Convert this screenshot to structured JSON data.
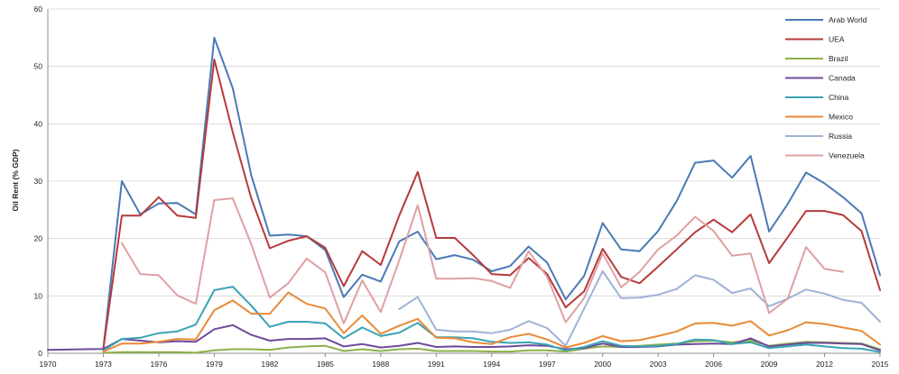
{
  "chart_data": {
    "type": "line",
    "title": "",
    "xlabel": "",
    "ylabel": "Oil Rent (% GDP)",
    "xlim": [
      1970,
      2015
    ],
    "ylim": [
      0,
      60
    ],
    "x_ticks": [
      "1970",
      "1973",
      "1976",
      "1979",
      "1982",
      "1985",
      "1988",
      "1991",
      "1994",
      "1997",
      "2000",
      "2003",
      "2006",
      "2009",
      "2012",
      "2015"
    ],
    "y_ticks": [
      "0",
      "10",
      "20",
      "30",
      "40",
      "50",
      "60"
    ],
    "grid": "horizontal",
    "legend_position": "right",
    "x": [
      1970,
      1971,
      1972,
      1973,
      1974,
      1975,
      1976,
      1977,
      1978,
      1979,
      1980,
      1981,
      1982,
      1983,
      1984,
      1985,
      1986,
      1987,
      1988,
      1989,
      1990,
      1991,
      1992,
      1993,
      1994,
      1995,
      1996,
      1997,
      1998,
      1999,
      2000,
      2001,
      2002,
      2003,
      2004,
      2005,
      2006,
      2007,
      2008,
      2009,
      2010,
      2011,
      2012,
      2013,
      2014,
      2015
    ],
    "series": [
      {
        "name": "Arab World",
        "color": "#4a7ab5",
        "values": [
          null,
          null,
          null,
          0.8,
          30.0,
          24.2,
          26.1,
          26.2,
          24.2,
          55.0,
          46.2,
          31.0,
          20.5,
          20.7,
          20.4,
          18.0,
          9.8,
          13.7,
          12.5,
          19.5,
          21.2,
          16.4,
          17.1,
          16.3,
          14.3,
          15.2,
          18.6,
          15.8,
          9.4,
          13.5,
          22.7,
          18.1,
          17.8,
          21.3,
          26.5,
          33.2,
          33.6,
          30.6,
          34.4,
          21.2,
          26.0,
          31.5,
          29.6,
          27.2,
          24.4,
          13.6
        ]
      },
      {
        "name": "UEA",
        "color": "#b53b3b",
        "values": [
          null,
          null,
          null,
          0.8,
          24.0,
          24.0,
          27.2,
          24.0,
          23.6,
          51.2,
          38.5,
          27.0,
          18.3,
          19.6,
          20.4,
          18.4,
          11.7,
          17.8,
          15.4,
          24.0,
          31.6,
          20.1,
          20.1,
          17.1,
          13.8,
          13.6,
          16.6,
          13.8,
          8.0,
          10.8,
          18.2,
          13.3,
          12.2,
          15.1,
          18.1,
          21.1,
          23.3,
          21.1,
          24.2,
          15.7,
          20.2,
          24.8,
          24.8,
          24.1,
          21.3,
          11.0
        ]
      },
      {
        "name": "Brazil",
        "color": "#8db04a",
        "values": [
          null,
          null,
          null,
          0.1,
          0.2,
          0.2,
          0.2,
          0.2,
          0.1,
          0.5,
          0.7,
          0.7,
          0.6,
          1.0,
          1.2,
          1.3,
          0.4,
          0.7,
          0.4,
          0.7,
          0.8,
          0.4,
          0.4,
          0.4,
          0.3,
          0.3,
          0.5,
          0.5,
          0.3,
          0.8,
          1.2,
          1.1,
          1.3,
          1.5,
          1.7,
          2.1,
          2.2,
          1.9,
          2.2,
          1.3,
          1.7,
          2.0,
          1.9,
          1.8,
          1.7,
          0.7
        ]
      },
      {
        "name": "Canada",
        "color": "#6e4a9b",
        "values": [
          0.6,
          0.65,
          0.7,
          0.75,
          2.5,
          2.2,
          1.9,
          2.1,
          2.0,
          4.2,
          4.9,
          3.2,
          2.2,
          2.5,
          2.5,
          2.6,
          1.2,
          1.6,
          1.0,
          1.3,
          1.8,
          1.1,
          1.2,
          1.1,
          1.1,
          1.2,
          1.4,
          1.3,
          0.7,
          0.9,
          1.7,
          1.1,
          1.1,
          1.2,
          1.5,
          1.6,
          1.7,
          1.6,
          2.6,
          1.2,
          1.5,
          1.8,
          1.8,
          1.7,
          1.6,
          0.5
        ]
      },
      {
        "name": "China",
        "color": "#3aa3b4",
        "values": [
          null,
          null,
          null,
          0.5,
          2.5,
          2.7,
          3.5,
          3.8,
          5.0,
          11.0,
          11.6,
          8.3,
          4.6,
          5.5,
          5.5,
          5.2,
          2.6,
          4.5,
          3.0,
          3.6,
          5.3,
          2.8,
          2.8,
          2.6,
          2.0,
          1.8,
          1.9,
          1.5,
          0.5,
          1.1,
          2.1,
          1.3,
          1.2,
          1.3,
          1.6,
          2.4,
          2.3,
          1.6,
          1.9,
          0.9,
          1.2,
          1.5,
          1.2,
          0.9,
          0.8,
          0.2
        ]
      },
      {
        "name": "Mexico",
        "color": "#e98a38",
        "values": [
          null,
          null,
          null,
          0.3,
          1.7,
          1.7,
          2.0,
          2.5,
          2.4,
          7.5,
          9.2,
          6.9,
          6.9,
          10.6,
          8.6,
          7.8,
          3.5,
          6.6,
          3.4,
          4.8,
          6.0,
          2.7,
          2.6,
          1.9,
          1.6,
          2.8,
          3.4,
          2.4,
          1.0,
          1.8,
          3.0,
          2.1,
          2.3,
          3.0,
          3.8,
          5.2,
          5.3,
          4.8,
          5.6,
          3.1,
          4.0,
          5.4,
          5.1,
          4.5,
          3.9,
          1.5
        ]
      },
      {
        "name": "Russia",
        "color": "#a0b2d6",
        "values": [
          null,
          null,
          null,
          null,
          null,
          null,
          null,
          null,
          null,
          null,
          null,
          null,
          null,
          null,
          null,
          null,
          null,
          null,
          null,
          7.7,
          9.8,
          4.1,
          3.8,
          3.8,
          3.5,
          4.1,
          5.6,
          4.4,
          1.3,
          7.8,
          14.3,
          9.6,
          9.7,
          10.2,
          11.2,
          13.6,
          12.8,
          10.5,
          11.3,
          8.2,
          9.5,
          11.1,
          10.4,
          9.3,
          8.8,
          5.5
        ]
      },
      {
        "name": "Venezuela",
        "color": "#dfa0a3",
        "values": [
          null,
          null,
          null,
          null,
          19.2,
          13.8,
          13.6,
          10.1,
          8.6,
          26.7,
          27.0,
          19.0,
          9.7,
          12.2,
          16.5,
          14.1,
          5.2,
          12.7,
          7.2,
          16.2,
          25.8,
          13.0,
          13.0,
          13.1,
          12.6,
          11.4,
          17.8,
          13.3,
          5.4,
          9.6,
          17.4,
          11.5,
          14.2,
          18.1,
          20.5,
          23.8,
          21.3,
          17.0,
          17.4,
          7.0,
          9.5,
          18.5,
          14.7,
          14.2,
          null,
          null
        ]
      }
    ]
  }
}
